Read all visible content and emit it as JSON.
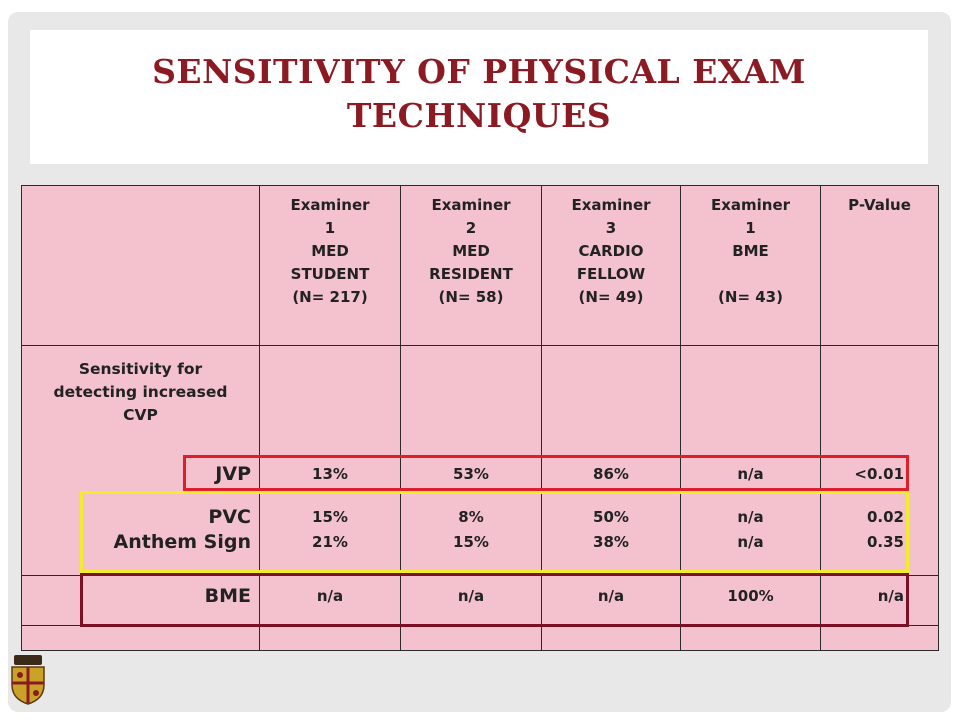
{
  "title_line1": "SENSITIVITY OF PHYSICAL EXAM",
  "title_line2": "TECHNIQUES",
  "colors": {
    "title": "#8b1a22",
    "table_bg": "#f4c2cf",
    "jvp_box": "#dd1f2a",
    "pvc_box": "#f3ec2b",
    "bme_box": "#7a1023"
  },
  "columns": [
    {
      "lines": [
        "Examiner",
        "1",
        "MED",
        "STUDENT",
        "(N= 217)"
      ]
    },
    {
      "lines": [
        "Examiner",
        "2",
        "MED",
        "RESIDENT",
        "(N= 58)"
      ]
    },
    {
      "lines": [
        "Examiner",
        "3",
        "CARDIO",
        "FELLOW",
        "(N= 49)"
      ]
    },
    {
      "lines": [
        "Examiner",
        "1",
        "BME",
        "",
        "(N= 43)"
      ]
    },
    {
      "lines": [
        "P-Value"
      ]
    }
  ],
  "sensitivity_label": "Sensitivity for detecting increased CVP",
  "rows": {
    "jvp": {
      "label": "JVP",
      "values": [
        "13%",
        "53%",
        "86%",
        "n/a",
        "<0.01"
      ]
    },
    "pvc": {
      "label": "PVC",
      "values": [
        "15%",
        "8%",
        "50%",
        "n/a",
        "0.02"
      ]
    },
    "anthem": {
      "label": "Anthem Sign",
      "values": [
        "21%",
        "15%",
        "38%",
        "n/a",
        "0.35"
      ]
    },
    "bme": {
      "label": "BME",
      "values": [
        "n/a",
        "n/a",
        "n/a",
        "100%",
        "n/a"
      ]
    }
  },
  "logo_icon": "university-crest-icon"
}
